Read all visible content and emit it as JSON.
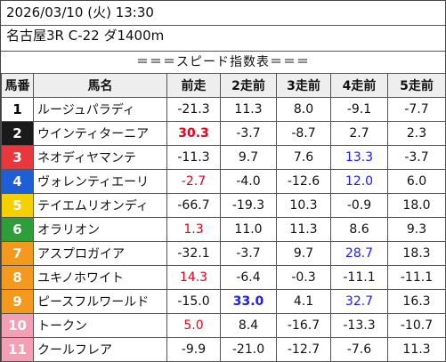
{
  "header": {
    "date_line": "2026/03/10 (火) 13:30",
    "race_line": "名古屋3R C-22 ダ1400m"
  },
  "title": "＝＝＝スピード指数表＝＝＝",
  "columns": [
    "馬番",
    "馬名",
    "前走",
    "2走前",
    "3走前",
    "4走前",
    "5走前"
  ],
  "rows": [
    {
      "num": "1",
      "name": "ルージュパラディ",
      "bg": "#ffffff",
      "fg": "#000000",
      "vals": [
        {
          "v": "-21.3"
        },
        {
          "v": "11.3"
        },
        {
          "v": "8.0"
        },
        {
          "v": "-9.1"
        },
        {
          "v": "-7.7"
        }
      ]
    },
    {
      "num": "2",
      "name": "ウインティターニア",
      "bg": "#1a1a1a",
      "fg": "#ffffff",
      "vals": [
        {
          "v": "30.3",
          "c": "red",
          "b": true
        },
        {
          "v": "-3.7"
        },
        {
          "v": "-8.7"
        },
        {
          "v": "2.7"
        },
        {
          "v": "2.3"
        }
      ]
    },
    {
      "num": "3",
      "name": "ネオディヤマンテ",
      "bg": "#e8383d",
      "fg": "#ffffff",
      "vals": [
        {
          "v": "-11.3"
        },
        {
          "v": "9.7"
        },
        {
          "v": "7.6"
        },
        {
          "v": "13.3",
          "c": "blue"
        },
        {
          "v": "-3.7"
        }
      ]
    },
    {
      "num": "4",
      "name": "ヴォレンティエーリ",
      "bg": "#1e5fd8",
      "fg": "#ffffff",
      "vals": [
        {
          "v": "-2.7",
          "c": "red"
        },
        {
          "v": "-4.0"
        },
        {
          "v": "-12.6"
        },
        {
          "v": "12.0",
          "c": "blue"
        },
        {
          "v": "6.0"
        }
      ]
    },
    {
      "num": "5",
      "name": "テイエムリオンディ",
      "bg": "#f5d000",
      "fg": "#ffffff",
      "vals": [
        {
          "v": "-66.7"
        },
        {
          "v": "-19.3"
        },
        {
          "v": "10.3"
        },
        {
          "v": "-0.9"
        },
        {
          "v": "18.0"
        }
      ]
    },
    {
      "num": "6",
      "name": "オラリオン",
      "bg": "#2e9e3a",
      "fg": "#ffffff",
      "vals": [
        {
          "v": "1.3",
          "c": "red"
        },
        {
          "v": "11.0"
        },
        {
          "v": "11.3"
        },
        {
          "v": "8.6"
        },
        {
          "v": "9.3"
        }
      ]
    },
    {
      "num": "7",
      "name": "アスプロガイア",
      "bg": "#f39a1e",
      "fg": "#ffffff",
      "vals": [
        {
          "v": "-32.1"
        },
        {
          "v": "-3.7"
        },
        {
          "v": "9.7"
        },
        {
          "v": "28.7",
          "c": "blue"
        },
        {
          "v": "18.3"
        }
      ]
    },
    {
      "num": "8",
      "name": "ユキノホワイト",
      "bg": "#f39a1e",
      "fg": "#ffffff",
      "vals": [
        {
          "v": "14.3",
          "c": "red"
        },
        {
          "v": "-6.4"
        },
        {
          "v": "-0.3"
        },
        {
          "v": "-11.1"
        },
        {
          "v": "-11.1"
        }
      ]
    },
    {
      "num": "9",
      "name": "ピースフルワールド",
      "bg": "#f39a1e",
      "fg": "#ffffff",
      "vals": [
        {
          "v": "-15.0"
        },
        {
          "v": "33.0",
          "c": "blue",
          "b": true
        },
        {
          "v": "4.1"
        },
        {
          "v": "32.7",
          "c": "blue"
        },
        {
          "v": "16.3"
        }
      ]
    },
    {
      "num": "10",
      "name": "トークン",
      "bg": "#f4a0b4",
      "fg": "#ffffff",
      "vals": [
        {
          "v": "5.0",
          "c": "red"
        },
        {
          "v": "8.4"
        },
        {
          "v": "-16.7"
        },
        {
          "v": "-13.3"
        },
        {
          "v": "-10.7"
        }
      ]
    },
    {
      "num": "11",
      "name": "クールフレア",
      "bg": "#f4a0b4",
      "fg": "#ffffff",
      "vals": [
        {
          "v": "-9.9"
        },
        {
          "v": "-21.0"
        },
        {
          "v": "-12.7"
        },
        {
          "v": "-7.6"
        },
        {
          "v": "11.3"
        }
      ]
    }
  ]
}
